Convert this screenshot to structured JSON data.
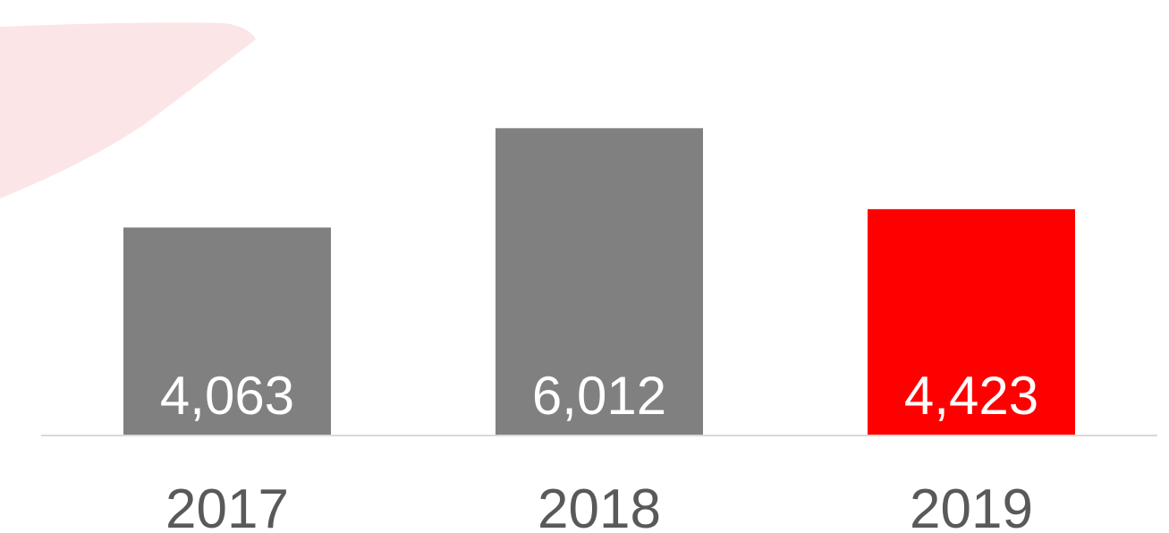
{
  "chart_data": {
    "type": "bar",
    "categories": [
      "2017",
      "2018",
      "2019"
    ],
    "values": [
      4063,
      6012,
      4423
    ],
    "value_labels": [
      "4,063",
      "6,012",
      "4,423"
    ],
    "ylim": [
      0,
      8000
    ],
    "grid": false,
    "legend": "none",
    "bar_colors": [
      "#808080",
      "#808080",
      "#ff0000"
    ],
    "axis_color": "#d9d9d9",
    "decoration_color": "#fbe5e6"
  }
}
